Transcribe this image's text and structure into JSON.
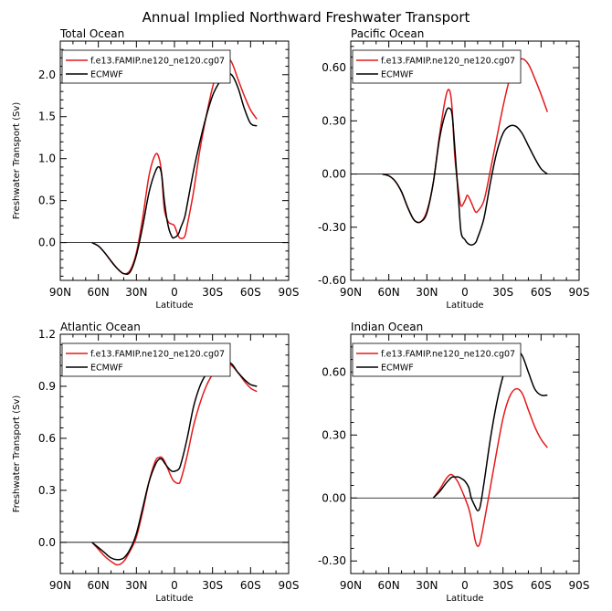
{
  "figure_title": "Annual Implied Northward Freshwater Transport",
  "colors": {
    "model": "#e41a1c",
    "reference": "#000000",
    "axis": "#000000",
    "zero_line": "#000000"
  },
  "legend": {
    "model": "f.e13.FAMIP.ne120_ne120.cg07",
    "reference": "ECMWF"
  },
  "chart_data": [
    {
      "type": "line",
      "title": "Total Ocean",
      "xlabel": "Latitude",
      "ylabel": "Freshwater Transport (Sv)",
      "xlim": [
        90,
        -90
      ],
      "x_ticks": [
        90,
        60,
        30,
        0,
        -30,
        -60,
        -90
      ],
      "x_tick_labels": [
        "90N",
        "60N",
        "30N",
        "0",
        "30S",
        "60S",
        "90S"
      ],
      "ylim": [
        -0.45,
        2.4
      ],
      "y_ticks": [
        0.0,
        0.5,
        1.0,
        1.5,
        2.0
      ],
      "y_tick_labels": [
        "0.0",
        "0.5",
        "1.0",
        "1.5",
        "2.0"
      ],
      "grid": false,
      "legend_position": "top-left",
      "series": [
        {
          "name": "f.e13.FAMIP.ne120_ne120.cg07",
          "color": "#e41a1c",
          "x": [
            65,
            60,
            55,
            50,
            45,
            40,
            35,
            30,
            25,
            20,
            15,
            12,
            10,
            8,
            5,
            2,
            0,
            -3,
            -5,
            -8,
            -10,
            -15,
            -20,
            -25,
            -30,
            -35,
            -40,
            -45,
            -50,
            -55,
            -60,
            -65
          ],
          "y": [
            0.0,
            -0.04,
            -0.12,
            -0.22,
            -0.31,
            -0.37,
            -0.33,
            -0.12,
            0.3,
            0.8,
            1.05,
            1.0,
            0.8,
            0.4,
            0.25,
            0.22,
            0.2,
            0.08,
            0.05,
            0.07,
            0.2,
            0.6,
            1.1,
            1.5,
            1.85,
            2.1,
            2.22,
            2.15,
            1.95,
            1.75,
            1.58,
            1.47
          ]
        },
        {
          "name": "ECMWF",
          "color": "#000000",
          "x": [
            65,
            60,
            55,
            50,
            45,
            40,
            35,
            30,
            25,
            20,
            15,
            12,
            10,
            8,
            5,
            2,
            0,
            -3,
            -5,
            -8,
            -10,
            -15,
            -20,
            -25,
            -30,
            -35,
            -40,
            -45,
            -50,
            -55,
            -60,
            -65
          ],
          "y": [
            0.0,
            -0.04,
            -0.12,
            -0.22,
            -0.31,
            -0.37,
            -0.35,
            -0.15,
            0.2,
            0.6,
            0.85,
            0.9,
            0.8,
            0.5,
            0.2,
            0.07,
            0.06,
            0.1,
            0.18,
            0.3,
            0.45,
            0.85,
            1.2,
            1.5,
            1.75,
            1.9,
            2.0,
            2.0,
            1.85,
            1.6,
            1.42,
            1.39
          ]
        }
      ]
    },
    {
      "type": "line",
      "title": "Pacific Ocean",
      "xlabel": "Latitude",
      "ylabel": "",
      "xlim": [
        90,
        -90
      ],
      "x_ticks": [
        90,
        60,
        30,
        0,
        -30,
        -60,
        -90
      ],
      "x_tick_labels": [
        "90N",
        "60N",
        "30N",
        "0",
        "30S",
        "60S",
        "90S"
      ],
      "ylim": [
        -0.6,
        0.75
      ],
      "y_ticks": [
        -0.6,
        -0.3,
        0.0,
        0.3,
        0.6
      ],
      "y_tick_labels": [
        "-0.60",
        "-0.30",
        "0.00",
        "0.30",
        "0.60"
      ],
      "grid": false,
      "legend_position": "top-left",
      "series": [
        {
          "name": "f.e13.FAMIP.ne120_ne120.cg07",
          "color": "#e41a1c",
          "x": [
            65,
            60,
            55,
            50,
            45,
            40,
            35,
            30,
            25,
            20,
            15,
            12,
            10,
            8,
            5,
            3,
            0,
            -2,
            -5,
            -8,
            -10,
            -15,
            -20,
            -25,
            -30,
            -35,
            -40,
            -45,
            -50,
            -55,
            -60,
            -65
          ],
          "y": [
            0.0,
            -0.01,
            -0.04,
            -0.1,
            -0.19,
            -0.26,
            -0.27,
            -0.21,
            -0.05,
            0.22,
            0.44,
            0.47,
            0.36,
            0.1,
            -0.1,
            -0.18,
            -0.15,
            -0.12,
            -0.16,
            -0.21,
            -0.21,
            -0.15,
            0.02,
            0.2,
            0.38,
            0.53,
            0.62,
            0.65,
            0.62,
            0.54,
            0.45,
            0.35
          ]
        },
        {
          "name": "ECMWF",
          "color": "#000000",
          "x": [
            65,
            60,
            55,
            50,
            45,
            40,
            35,
            30,
            25,
            20,
            15,
            12,
            10,
            8,
            5,
            3,
            0,
            -2,
            -5,
            -8,
            -10,
            -15,
            -20,
            -25,
            -30,
            -35,
            -40,
            -45,
            -50,
            -55,
            -60,
            -65
          ],
          "y": [
            0.0,
            -0.01,
            -0.04,
            -0.1,
            -0.19,
            -0.26,
            -0.27,
            -0.22,
            -0.05,
            0.2,
            0.35,
            0.37,
            0.33,
            0.15,
            -0.15,
            -0.33,
            -0.37,
            -0.39,
            -0.4,
            -0.39,
            -0.36,
            -0.25,
            -0.05,
            0.12,
            0.23,
            0.27,
            0.27,
            0.23,
            0.16,
            0.09,
            0.03,
            0.0
          ]
        }
      ]
    },
    {
      "type": "line",
      "title": "Atlantic Ocean",
      "xlabel": "Latitude",
      "ylabel": "Freshwater Transport (Sv)",
      "xlim": [
        90,
        -90
      ],
      "x_ticks": [
        90,
        60,
        30,
        0,
        -30,
        -60,
        -90
      ],
      "x_tick_labels": [
        "90N",
        "60N",
        "30N",
        "0",
        "30S",
        "60S",
        "90S"
      ],
      "ylim": [
        -0.18,
        1.2
      ],
      "y_ticks": [
        0.0,
        0.3,
        0.6,
        0.9,
        1.2
      ],
      "y_tick_labels": [
        "0.0",
        "0.3",
        "0.6",
        "0.9",
        "1.2"
      ],
      "grid": false,
      "legend_position": "top-left",
      "series": [
        {
          "name": "f.e13.FAMIP.ne120_ne120.cg07",
          "color": "#e41a1c",
          "x": [
            65,
            60,
            55,
            50,
            45,
            40,
            35,
            30,
            25,
            20,
            15,
            12,
            10,
            8,
            5,
            2,
            0,
            -3,
            -5,
            -10,
            -15,
            -20,
            -25,
            -30,
            -35,
            -40,
            -45,
            -50,
            -55,
            -60,
            -65
          ],
          "y": [
            0.0,
            -0.04,
            -0.08,
            -0.11,
            -0.13,
            -0.11,
            -0.05,
            0.03,
            0.18,
            0.35,
            0.47,
            0.49,
            0.49,
            0.47,
            0.42,
            0.37,
            0.35,
            0.34,
            0.36,
            0.5,
            0.67,
            0.8,
            0.9,
            0.97,
            1.02,
            1.04,
            1.02,
            0.98,
            0.93,
            0.89,
            0.87
          ]
        },
        {
          "name": "ECMWF",
          "color": "#000000",
          "x": [
            65,
            60,
            55,
            50,
            45,
            40,
            35,
            30,
            25,
            20,
            15,
            12,
            10,
            8,
            5,
            2,
            0,
            -3,
            -5,
            -10,
            -15,
            -20,
            -25,
            -30,
            -35,
            -40,
            -45,
            -50,
            -55,
            -60,
            -65
          ],
          "y": [
            0.0,
            -0.03,
            -0.06,
            -0.09,
            -0.1,
            -0.09,
            -0.04,
            0.05,
            0.2,
            0.35,
            0.45,
            0.48,
            0.48,
            0.46,
            0.43,
            0.41,
            0.41,
            0.42,
            0.45,
            0.6,
            0.78,
            0.9,
            0.97,
            1.01,
            1.03,
            1.04,
            1.03,
            0.98,
            0.94,
            0.91,
            0.9
          ]
        }
      ]
    },
    {
      "type": "line",
      "title": "Indian Ocean",
      "xlabel": "Latitude",
      "ylabel": "",
      "xlim": [
        90,
        -90
      ],
      "x_ticks": [
        90,
        60,
        30,
        0,
        -30,
        -60,
        -90
      ],
      "x_tick_labels": [
        "90N",
        "60N",
        "30N",
        "0",
        "30S",
        "60S",
        "90S"
      ],
      "ylim": [
        -0.36,
        0.78
      ],
      "y_ticks": [
        -0.3,
        0.0,
        0.3,
        0.6
      ],
      "y_tick_labels": [
        "-0.30",
        "0.00",
        "0.30",
        "0.60"
      ],
      "grid": false,
      "legend_position": "top-left",
      "series": [
        {
          "name": "f.e13.FAMIP.ne120_ne120.cg07",
          "color": "#e41a1c",
          "x": [
            25,
            20,
            15,
            12,
            10,
            7,
            5,
            2,
            0,
            -3,
            -5,
            -8,
            -10,
            -12,
            -15,
            -20,
            -25,
            -30,
            -35,
            -40,
            -45,
            -50,
            -55,
            -60,
            -65
          ],
          "y": [
            0.0,
            0.04,
            0.09,
            0.11,
            0.11,
            0.09,
            0.07,
            0.03,
            0.0,
            -0.05,
            -0.1,
            -0.2,
            -0.23,
            -0.21,
            -0.12,
            0.05,
            0.22,
            0.38,
            0.48,
            0.52,
            0.5,
            0.42,
            0.34,
            0.28,
            0.24
          ]
        },
        {
          "name": "ECMWF",
          "color": "#000000",
          "x": [
            25,
            20,
            15,
            12,
            10,
            7,
            5,
            2,
            0,
            -3,
            -5,
            -8,
            -10,
            -12,
            -15,
            -20,
            -25,
            -30,
            -35,
            -40,
            -45,
            -50,
            -55,
            -60,
            -65
          ],
          "y": [
            0.0,
            0.03,
            0.07,
            0.09,
            0.1,
            0.1,
            0.1,
            0.09,
            0.08,
            0.05,
            0.0,
            -0.04,
            -0.06,
            -0.04,
            0.07,
            0.28,
            0.45,
            0.58,
            0.66,
            0.7,
            0.68,
            0.6,
            0.52,
            0.49,
            0.49
          ]
        }
      ]
    }
  ]
}
